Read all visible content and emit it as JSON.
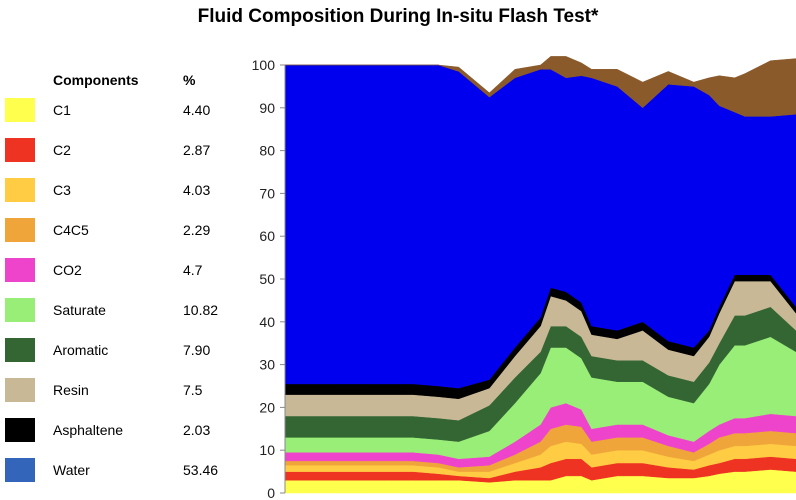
{
  "title": "Fluid Composition During In-situ Flash Test*",
  "legend": {
    "header_components": "Components",
    "header_percent": "%",
    "items": [
      {
        "name": "C1",
        "value": "4.40",
        "color": "#ffff4d"
      },
      {
        "name": "C2",
        "value": "2.87",
        "color": "#ee3322"
      },
      {
        "name": "C3",
        "value": "4.03",
        "color": "#ffcc44"
      },
      {
        "name": "C4C5",
        "value": "2.29",
        "color": "#f0a53a"
      },
      {
        "name": "CO2",
        "value": "4.7",
        "color": "#ee44cc"
      },
      {
        "name": "Saturate",
        "value": "10.82",
        "color": "#99ee77"
      },
      {
        "name": "Aromatic",
        "value": "7.90",
        "color": "#336633"
      },
      {
        "name": "Resin",
        "value": "7.5",
        "color": "#c8b896"
      },
      {
        "name": "Asphaltene",
        "value": "2.03",
        "color": "#000000"
      },
      {
        "name": "Water",
        "value": "53.46",
        "color": "#3366bb"
      }
    ]
  },
  "chart_data": {
    "type": "area",
    "stacked": true,
    "title": "Fluid Composition During In-situ Flash Test*",
    "xlabel": "",
    "ylabel": "",
    "ylim": [
      0,
      100
    ],
    "yticks": [
      0,
      10,
      20,
      30,
      40,
      50,
      60,
      70,
      80,
      90,
      100
    ],
    "x": [
      0,
      5,
      10,
      15,
      20,
      25,
      30,
      34,
      40,
      45,
      50,
      52,
      55,
      58,
      60,
      65,
      70,
      75,
      80,
      83,
      85,
      88,
      90,
      95,
      100
    ],
    "series": [
      {
        "color": "#ffff4d",
        "values": [
          3,
          3,
          3,
          3,
          3,
          3,
          3,
          3,
          2.5,
          3,
          3,
          3,
          4,
          4,
          3,
          4,
          4,
          3.5,
          3.5,
          4,
          4.5,
          5,
          5,
          5.5,
          5
        ]
      },
      {
        "color": "#ee3322",
        "values": [
          2,
          2,
          2,
          2,
          2,
          2,
          1.5,
          1,
          1,
          2,
          3,
          4,
          4,
          4,
          3,
          3,
          3,
          2.5,
          2,
          2.5,
          2.5,
          3,
          3,
          3,
          3
        ]
      },
      {
        "color": "#ffcc44",
        "values": [
          1.5,
          1.5,
          1.5,
          1.5,
          1.5,
          1.5,
          1.5,
          1,
          1.5,
          2,
          3,
          4,
          4,
          3.5,
          3,
          3,
          3,
          2.5,
          2,
          2.5,
          3,
          3,
          3,
          3,
          3
        ]
      },
      {
        "color": "#f0a53a",
        "values": [
          1,
          1,
          1,
          1,
          1,
          1,
          1,
          1,
          1.5,
          2,
          3,
          4,
          4,
          4,
          3,
          3,
          3,
          2.5,
          2,
          2.5,
          3,
          3,
          3,
          3,
          3
        ]
      },
      {
        "color": "#ee44cc",
        "values": [
          2,
          2,
          2,
          2,
          2,
          2,
          2,
          2,
          2,
          3,
          4,
          5,
          5,
          4,
          3,
          3,
          3,
          2.5,
          2.5,
          3,
          3,
          3.5,
          3.5,
          4,
          4
        ]
      },
      {
        "color": "#99ee77",
        "values": [
          3.5,
          3.5,
          3.5,
          3.5,
          3.5,
          3.5,
          3.5,
          4,
          6,
          9,
          12,
          14,
          13,
          12,
          12,
          10,
          10,
          9,
          9,
          11,
          14,
          17,
          17,
          18,
          15
        ]
      },
      {
        "color": "#336633",
        "values": [
          5,
          5,
          5,
          5,
          5,
          5,
          5,
          5,
          6,
          6,
          5,
          5,
          5,
          5,
          5,
          5,
          5,
          5,
          5,
          5,
          5,
          7,
          7,
          7,
          5
        ]
      },
      {
        "color": "#c8b896",
        "values": [
          5,
          5,
          5,
          5,
          5,
          5,
          5,
          5,
          4,
          5,
          6,
          7,
          6,
          6,
          5,
          5,
          7,
          6,
          6,
          6,
          7,
          8,
          8,
          6,
          4
        ]
      },
      {
        "color": "#000000",
        "values": [
          2.5,
          2.5,
          2.5,
          2.5,
          2.5,
          2.5,
          2.5,
          2.5,
          2,
          2,
          2,
          2,
          2,
          2,
          2,
          2,
          2,
          2,
          2,
          1.5,
          1.5,
          1.5,
          1.5,
          1.5,
          1.5
        ]
      },
      {
        "color": "#0000ee",
        "values": [
          74.5,
          74.5,
          74.5,
          74.5,
          74.5,
          74.5,
          75,
          74,
          66,
          63,
          58,
          51,
          50,
          53,
          58,
          57,
          50,
          60,
          61,
          55,
          47,
          38,
          37,
          37,
          45
        ]
      },
      {
        "color": "#8b5a2b",
        "values": [
          0,
          0,
          0,
          0,
          0,
          0,
          0,
          1,
          1,
          2,
          1,
          3,
          5,
          3,
          2,
          4,
          6,
          3,
          1,
          4,
          7,
          8,
          10,
          13,
          13
        ]
      }
    ]
  }
}
